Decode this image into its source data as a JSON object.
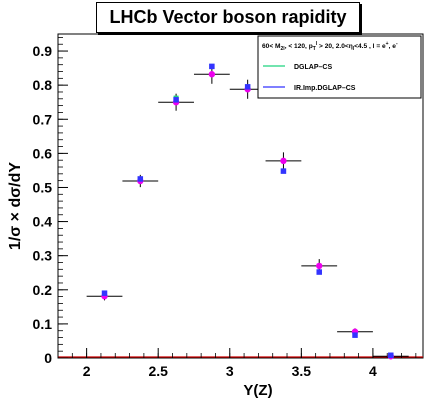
{
  "chart_data": {
    "type": "scatter",
    "title": "LHCb Vector boson rapidity",
    "xlabel": "Y(Z)",
    "ylabel": "1/σ × dσ/dY",
    "xlim": [
      1.8,
      4.35
    ],
    "ylim": [
      0,
      0.95
    ],
    "xticks": [
      2,
      2.5,
      3,
      3.5,
      4
    ],
    "xtick_labels": [
      "2",
      "2.5",
      "3",
      "3.5",
      "4"
    ],
    "yticks": [
      0,
      0.1,
      0.2,
      0.3,
      0.4,
      0.5,
      0.6,
      0.7,
      0.8,
      0.9
    ],
    "ytick_labels": [
      "0",
      "0.1",
      "0.2",
      "0.3",
      "0.4",
      "0.5",
      "0.6",
      "0.7",
      "0.8",
      "0.9"
    ],
    "grid": false,
    "legend_position": "top-right",
    "legend_header": "60< M",
    "legend_header_rest": ", < 120, p",
    "legend_header_rest2": " > 20, 2.0<η",
    "legend_header_rest3": "<4.5 , l = e",
    "legend_header_sup1": "+",
    "legend_header_rest4": ", e",
    "legend_header_sup2": "-",
    "legend_header_sub1": "2l",
    "legend_header_sub2": "T",
    "legend_header_sup3": "l",
    "legend_header_sub3": "l",
    "data_points": {
      "x": [
        2.125,
        2.375,
        2.625,
        2.875,
        3.125,
        3.375,
        3.625,
        3.875,
        4.125
      ],
      "x_err": [
        0.125,
        0.125,
        0.125,
        0.125,
        0.125,
        0.125,
        0.125,
        0.125,
        0.125
      ],
      "y": [
        0.181,
        0.519,
        0.75,
        0.832,
        0.788,
        0.578,
        0.27,
        0.077,
        0.005
      ],
      "y_err": [
        0.012,
        0.018,
        0.025,
        0.028,
        0.028,
        0.025,
        0.02,
        0.01,
        0.003
      ],
      "color": "#ee00ee"
    },
    "series": [
      {
        "name": "DGLAP–CS",
        "color": "#1fd47f",
        "x": [
          2.125,
          2.375,
          2.625,
          2.875,
          3.125,
          3.375,
          3.625,
          3.875,
          4.125
        ],
        "y": [
          0.19,
          0.525,
          0.762,
          0.855,
          0.795,
          0.548,
          0.252,
          0.067,
          0.008
        ]
      },
      {
        "name": "IR.Imp.DGLAP–CS",
        "color": "#3333ff",
        "x": [
          2.125,
          2.375,
          2.625,
          2.875,
          3.125,
          3.375,
          3.625,
          3.875,
          4.125
        ],
        "y": [
          0.19,
          0.525,
          0.757,
          0.855,
          0.795,
          0.548,
          0.252,
          0.067,
          0.008
        ]
      }
    ],
    "baseline_color": "#cc0000"
  }
}
